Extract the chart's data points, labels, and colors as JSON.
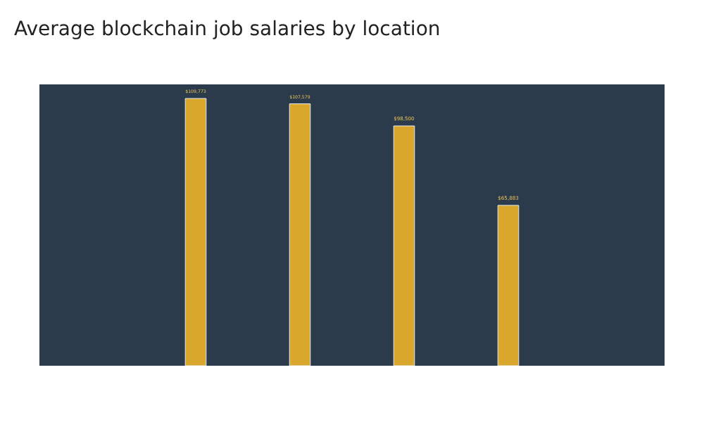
{
  "chart_data": {
    "type": "bar",
    "title": "Average blockchain job salaries by location",
    "categories": [
      null,
      null,
      null,
      null
    ],
    "values": [
      109773,
      107579,
      98500,
      65883
    ],
    "value_labels": [
      "$109,773",
      "$107,579",
      "$98,500",
      "$65,883"
    ],
    "color": "#d9a72c"
  }
}
